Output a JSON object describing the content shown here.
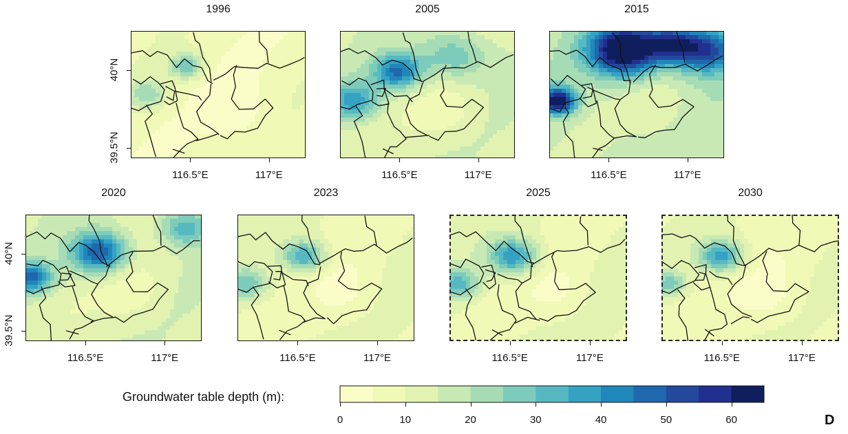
{
  "figure": {
    "panel_letter": "D",
    "panels": [
      {
        "year": "1996",
        "dashed": false,
        "hot": [
          [
            0.32,
            0.28,
            0.1,
            0.35
          ],
          [
            0.1,
            0.5,
            0.12,
            0.25
          ]
        ],
        "base": 0.1
      },
      {
        "year": "2005",
        "dashed": false,
        "hot": [
          [
            0.33,
            0.32,
            0.14,
            0.55
          ],
          [
            0.08,
            0.55,
            0.15,
            0.4
          ],
          [
            0.65,
            0.2,
            0.2,
            0.3
          ]
        ],
        "base": 0.22
      },
      {
        "year": "2015",
        "dashed": false,
        "hot": [
          [
            0.43,
            0.15,
            0.2,
            0.95
          ],
          [
            0.05,
            0.55,
            0.1,
            0.85
          ],
          [
            0.9,
            0.15,
            0.18,
            0.6
          ],
          [
            0.7,
            0.1,
            0.15,
            0.55
          ]
        ],
        "base": 0.3
      },
      {
        "year": "2020",
        "dashed": false,
        "hot": [
          [
            0.42,
            0.3,
            0.16,
            0.65
          ],
          [
            0.03,
            0.5,
            0.12,
            0.55
          ],
          [
            0.9,
            0.1,
            0.15,
            0.35
          ]
        ],
        "base": 0.22
      },
      {
        "year": "2023",
        "dashed": false,
        "hot": [
          [
            0.38,
            0.33,
            0.12,
            0.45
          ],
          [
            0.05,
            0.55,
            0.12,
            0.3
          ]
        ],
        "base": 0.15
      },
      {
        "year": "2025",
        "dashed": true,
        "hot": [
          [
            0.36,
            0.33,
            0.14,
            0.5
          ],
          [
            0.05,
            0.55,
            0.12,
            0.35
          ]
        ],
        "base": 0.16
      },
      {
        "year": "2030",
        "dashed": true,
        "hot": [
          [
            0.34,
            0.33,
            0.13,
            0.48
          ],
          [
            0.04,
            0.55,
            0.1,
            0.3
          ]
        ],
        "base": 0.13
      }
    ],
    "x_ticks": [
      "116.5°E",
      "117°E"
    ],
    "y_ticks": [
      "40°N",
      "39.5°N"
    ],
    "legend": {
      "title": "Groundwater table depth (m):",
      "ticks": [
        "0",
        "10",
        "20",
        "30",
        "40",
        "50",
        "60"
      ],
      "range": [
        0,
        65
      ],
      "colors": [
        "#fbfdc9",
        "#f1f9b7",
        "#e2f3b1",
        "#c8e9b4",
        "#a6dcb5",
        "#7dcbbb",
        "#56b9c2",
        "#35a2c4",
        "#2087bb",
        "#1f68ad",
        "#24499c",
        "#212f8f",
        "#0f1e5d"
      ]
    }
  }
}
